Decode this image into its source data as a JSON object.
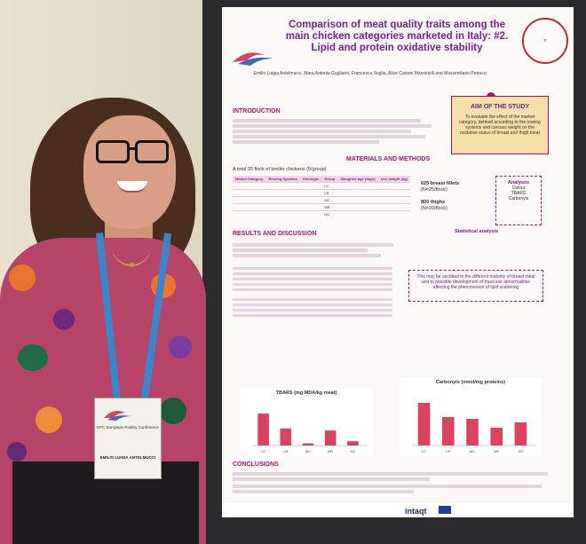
{
  "poster": {
    "title": "Comparison of meat quality traits among the main chicken categories marketed in Italy: #2. Lipid and protein oxidative stability",
    "authors": "Emilio Luigia Antelmucci, Mara Antonia Gagliano, Francesca Soglia, Alice Cartoni Mancinelli and Massimiliano Petracci",
    "aim_title": "AIM OF THE STUDY",
    "aim_text": "To evaluate the effect of the market category, defined according to the rearing systems and carcass weight on the oxidative status of breast and thigh meat",
    "introduction_title": "INTRODUCTION",
    "materials_title": "MATERIALS AND METHODS",
    "flock_line": "A total 25 flock of broiler chickens (5/group)",
    "breast_fillets": "625 breast fillets",
    "breast_sub": "(N=25/flock)",
    "thighs": "800 thighs",
    "thighs_sub": "(N=20/flock)",
    "analyses_title": "Analyses",
    "analyses_items": [
      "Colour",
      "TBARS",
      "Carbonyls"
    ],
    "stat_title": "Statistical analysis",
    "results_title": "RESULTS AND DISCUSSION",
    "note": "This may be ascribed to the different maturity of breast meat and to possible development of muscular abnormalities affecting the phenomenon of lipid scattering",
    "conclusions_title": "CONCLUSIONS",
    "chart1_title": "TBARS (mg MDA/kg meat)",
    "chart2_title": "Carbonyls (nmol/mg proteins)",
    "categories": [
      "LC",
      "LR",
      "MC",
      "MR",
      "HC"
    ],
    "footer_logo": "intaqt",
    "table_headers": [
      "Market Category",
      "Rearing Systems",
      "Genotype",
      "Group",
      "Slaughter age (days)",
      "Live weight (kg)"
    ]
  },
  "badge": {
    "name": "EMILIO LUIGIA ANTELMUCCI",
    "conference": "EPC European Poultry Conference"
  },
  "colors": {
    "title": "#7a1f8f",
    "section": "#a1166b",
    "bars": "#d9435e"
  },
  "chart_data": [
    {
      "type": "bar",
      "title": "TBARS (mg MDA/kg meat)",
      "categories": [
        "LC",
        "LR",
        "MC",
        "MR",
        "HC"
      ],
      "values": [
        0.75,
        0.4,
        0.05,
        0.35,
        0.1
      ]
    },
    {
      "type": "bar",
      "title": "Carbonyls (nmol/mg proteins)",
      "categories": [
        "LC",
        "LR",
        "MC",
        "MR",
        "HC"
      ],
      "values": [
        2.4,
        1.6,
        1.5,
        1.0,
        1.3
      ]
    }
  ]
}
